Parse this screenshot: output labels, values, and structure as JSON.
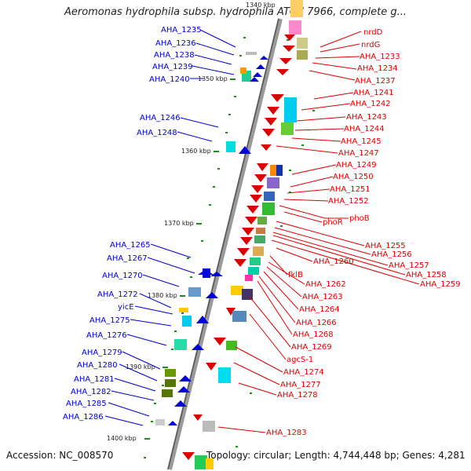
{
  "title": "Aeromonas hydrophila subsp. hydrophila ATCC 7966, complete g...",
  "accession": "Accession: NC_008570",
  "topology": "Topology: circular; Length: 4,744,448 bp; Genes: 4,281",
  "kbp_labels": [
    "1340 kbp",
    "1350 kbp",
    "1360 kbp",
    "1370 kbp",
    "1380 kbp",
    "1390 kbp",
    "1400 kbp"
  ],
  "left_labels": [
    "AHA_1235",
    "AHA_1236",
    "AHA_1238",
    "AHA_1239",
    "AHA_1240",
    "AHA_1246",
    "AHA_1248",
    "AHA_1265",
    "AHA_1267",
    "AHA_1270",
    "AHA_1272",
    "yicE",
    "AHA_1275",
    "AHA_1276",
    "AHA_1279",
    "AHA_1280",
    "AHA_1281",
    "AHA_1282",
    "AHA_1285",
    "AHA_1286"
  ],
  "right_labels": [
    "nrdD",
    "nrdG",
    "AHA_1233",
    "AHA_1234",
    "AHA_1237",
    "AHA_1241",
    "AHA_1242",
    "AHA_1243",
    "AHA_1244",
    "AHA_1245",
    "AHA_1247",
    "AHA_1249",
    "AHA_1250",
    "AHA_1251",
    "AHA_1252",
    "phoB",
    "phoR",
    "AHA_1255",
    "AHA_1256",
    "AHA_1257",
    "AHA_1258",
    "AHA_1259",
    "AHA_1260",
    "fklB",
    "AHA_1262",
    "AHA_1263",
    "AHA_1264",
    "AHA_1266",
    "AHA_1268",
    "AHA_1269",
    "agcS-1",
    "AHA_1274",
    "AHA_1277",
    "AHA_1278",
    "AHA_1283"
  ],
  "colors": {
    "left_label": "#0000cc",
    "right_label": "#dd0000",
    "backbone": "#888888",
    "tick": "#228822"
  }
}
